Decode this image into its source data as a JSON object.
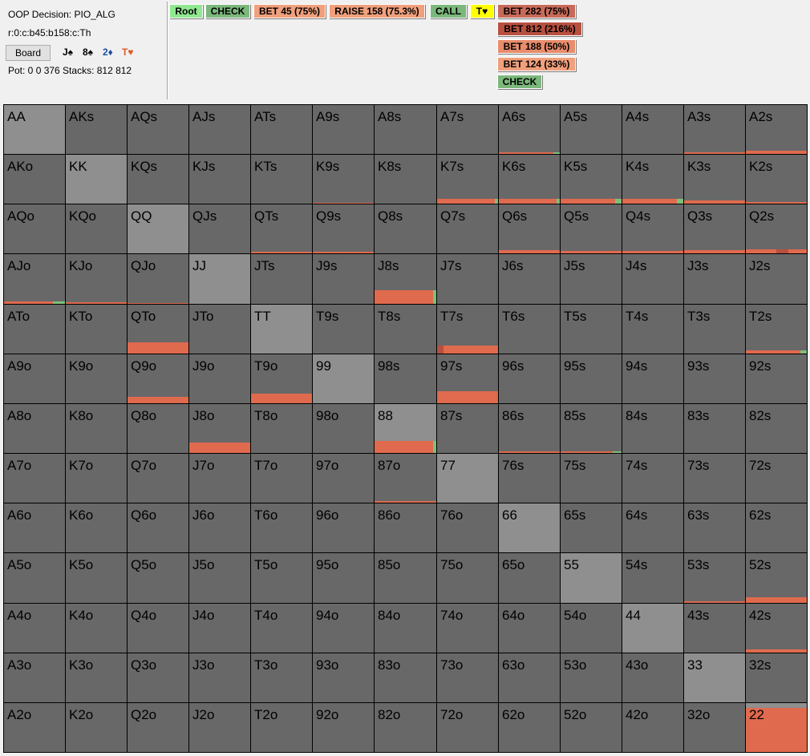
{
  "info": {
    "decision": "OOP Decision:  PIO_ALG",
    "line": "r:0:c:b45:b158:c:Th",
    "board_label": "Board",
    "pot": "Pot: 0 0 376 Stacks: 812 812"
  },
  "board_cards": [
    {
      "text": "J♠",
      "color": "#000000"
    },
    {
      "text": "8♠",
      "color": "#000000"
    },
    {
      "text": "2♦",
      "color": "#1f4fa0"
    },
    {
      "text": "T♥",
      "color": "#e05a2a"
    }
  ],
  "tree": [
    {
      "label": "Root",
      "bg": "#90e890"
    },
    {
      "label": "CHECK",
      "bg": "#7cb87c"
    },
    {
      "label": "BET 45 (75%)",
      "bg": "#f0a07c"
    },
    {
      "label": "RAISE 158 (75.3%)",
      "bg": "#f0a07c"
    },
    {
      "label": "CALL",
      "bg": "#7cb87c"
    },
    {
      "label": "T♥",
      "bg": "#ffff00"
    },
    {
      "label": "BET 282 (75%)",
      "bg": "#c86a5a"
    },
    {
      "label": "BET 812 (216%)",
      "bg": "#b85040"
    },
    {
      "label": "BET 188 (50%)",
      "bg": "#e88c6c"
    },
    {
      "label": "BET 124 (33%)",
      "bg": "#f0a07c"
    },
    {
      "label": "CHECK",
      "bg": "#7cb87c"
    }
  ],
  "colors": {
    "cell": "#686868",
    "pair": "#8f8f8f",
    "bet_big": "#b85040",
    "bet_mid": "#e06a4e",
    "bet_small": "#f0a07c",
    "check": "#7cc07c"
  },
  "grid": [
    [
      "AA",
      "AKs",
      "AQs",
      "AJs",
      "ATs",
      "A9s",
      "A8s",
      "A7s",
      "A6s",
      "A5s",
      "A4s",
      "A3s",
      "A2s"
    ],
    [
      "AKo",
      "KK",
      "KQs",
      "KJs",
      "KTs",
      "K9s",
      "K8s",
      "K7s",
      "K6s",
      "K5s",
      "K4s",
      "K3s",
      "K2s"
    ],
    [
      "AQo",
      "KQo",
      "QQ",
      "QJs",
      "QTs",
      "Q9s",
      "Q8s",
      "Q7s",
      "Q6s",
      "Q5s",
      "Q4s",
      "Q3s",
      "Q2s"
    ],
    [
      "AJo",
      "KJo",
      "QJo",
      "JJ",
      "JTs",
      "J9s",
      "J8s",
      "J7s",
      "J6s",
      "J5s",
      "J4s",
      "J3s",
      "J2s"
    ],
    [
      "ATo",
      "KTo",
      "QTo",
      "JTo",
      "TT",
      "T9s",
      "T8s",
      "T7s",
      "T6s",
      "T5s",
      "T4s",
      "T3s",
      "T2s"
    ],
    [
      "A9o",
      "K9o",
      "Q9o",
      "J9o",
      "T9o",
      "99",
      "98s",
      "97s",
      "96s",
      "95s",
      "94s",
      "93s",
      "92s"
    ],
    [
      "A8o",
      "K8o",
      "Q8o",
      "J8o",
      "T8o",
      "98o",
      "88",
      "87s",
      "86s",
      "85s",
      "84s",
      "83s",
      "82s"
    ],
    [
      "A7o",
      "K7o",
      "Q7o",
      "J7o",
      "T7o",
      "97o",
      "87o",
      "77",
      "76s",
      "75s",
      "74s",
      "73s",
      "72s"
    ],
    [
      "A6o",
      "K6o",
      "Q6o",
      "J6o",
      "T6o",
      "96o",
      "86o",
      "76o",
      "66",
      "65s",
      "64s",
      "63s",
      "62s"
    ],
    [
      "A5o",
      "K5o",
      "Q5o",
      "J5o",
      "T5o",
      "95o",
      "85o",
      "75o",
      "65o",
      "55",
      "54s",
      "53s",
      "52s"
    ],
    [
      "A4o",
      "K4o",
      "Q4o",
      "J4o",
      "T4o",
      "94o",
      "84o",
      "74o",
      "64o",
      "54o",
      "44",
      "43s",
      "42s"
    ],
    [
      "A3o",
      "K3o",
      "Q3o",
      "J3o",
      "T3o",
      "93o",
      "83o",
      "73o",
      "63o",
      "53o",
      "43o",
      "33",
      "32s"
    ],
    [
      "A2o",
      "K2o",
      "Q2o",
      "J2o",
      "T2o",
      "92o",
      "82o",
      "72o",
      "62o",
      "52o",
      "42o",
      "32o",
      "22"
    ]
  ],
  "strategy": {
    "A6s": {
      "level": 0.04,
      "segs": [
        [
          "bet_mid",
          0.9
        ],
        [
          "check",
          0.1
        ]
      ]
    },
    "A3s": {
      "level": 0.04,
      "segs": [
        [
          "bet_mid",
          1.0
        ]
      ]
    },
    "A2s": {
      "level": 0.07,
      "segs": [
        [
          "bet_mid",
          1.0
        ]
      ]
    },
    "K7s": {
      "level": 0.1,
      "segs": [
        [
          "bet_mid",
          0.95
        ],
        [
          "check",
          0.05
        ]
      ]
    },
    "K6s": {
      "level": 0.1,
      "segs": [
        [
          "bet_mid",
          0.95
        ],
        [
          "check",
          0.05
        ]
      ]
    },
    "K5s": {
      "level": 0.1,
      "segs": [
        [
          "bet_mid",
          0.9
        ],
        [
          "check",
          0.1
        ]
      ]
    },
    "K4s": {
      "level": 0.1,
      "segs": [
        [
          "bet_mid",
          0.9
        ],
        [
          "check",
          0.1
        ]
      ]
    },
    "K3s": {
      "level": 0.07,
      "segs": [
        [
          "bet_mid",
          1.0
        ]
      ]
    },
    "K2s": {
      "level": 0.04,
      "segs": [
        [
          "bet_mid",
          1.0
        ]
      ]
    },
    "K9s": {
      "level": 0.02,
      "segs": [
        [
          "bet_mid",
          1.0
        ]
      ]
    },
    "QTs": {
      "level": 0.03,
      "segs": [
        [
          "bet_mid",
          1.0
        ]
      ]
    },
    "Q9s": {
      "level": 0.03,
      "segs": [
        [
          "bet_mid",
          1.0
        ]
      ]
    },
    "Q6s": {
      "level": 0.06,
      "segs": [
        [
          "bet_mid",
          1.0
        ]
      ]
    },
    "Q5s": {
      "level": 0.05,
      "segs": [
        [
          "bet_mid",
          1.0
        ]
      ]
    },
    "Q4s": {
      "level": 0.05,
      "segs": [
        [
          "bet_mid",
          1.0
        ]
      ]
    },
    "Q3s": {
      "level": 0.06,
      "segs": [
        [
          "bet_mid",
          1.0
        ]
      ]
    },
    "Q2s": {
      "level": 0.08,
      "segs": [
        [
          "bet_mid",
          0.5
        ],
        [
          "bet_big",
          0.2
        ],
        [
          "bet_mid",
          0.3
        ]
      ]
    },
    "AJo": {
      "level": 0.05,
      "segs": [
        [
          "bet_mid",
          0.8
        ],
        [
          "check",
          0.2
        ]
      ]
    },
    "KJo": {
      "level": 0.03,
      "segs": [
        [
          "bet_mid",
          1.0
        ]
      ]
    },
    "QJo": {
      "level": 0.02,
      "segs": [
        [
          "bet_mid",
          1.0
        ]
      ]
    },
    "J8s": {
      "level": 0.27,
      "segs": [
        [
          "bet_mid",
          0.95
        ],
        [
          "check",
          0.05
        ]
      ]
    },
    "QTo": {
      "level": 0.23,
      "segs": [
        [
          "bet_mid",
          1.0
        ]
      ]
    },
    "T7s": {
      "level": 0.17,
      "segs": [
        [
          "bet_big",
          0.1
        ],
        [
          "bet_mid",
          0.9
        ]
      ]
    },
    "T2s": {
      "level": 0.06,
      "segs": [
        [
          "bet_mid",
          0.9
        ],
        [
          "check",
          0.1
        ]
      ]
    },
    "Q9o": {
      "level": 0.13,
      "segs": [
        [
          "bet_mid",
          1.0
        ]
      ]
    },
    "T9o": {
      "level": 0.2,
      "segs": [
        [
          "bet_mid",
          1.0
        ]
      ]
    },
    "97s": {
      "level": 0.25,
      "segs": [
        [
          "bet_mid",
          1.0
        ]
      ]
    },
    "J8o": {
      "level": 0.22,
      "segs": [
        [
          "bet_mid",
          1.0
        ]
      ]
    },
    "88": {
      "level": 0.25,
      "segs": [
        [
          "bet_mid",
          0.95
        ],
        [
          "check",
          0.05
        ]
      ]
    },
    "86s": {
      "level": 0.04,
      "segs": [
        [
          "bet_mid",
          1.0
        ]
      ]
    },
    "85s": {
      "level": 0.04,
      "segs": [
        [
          "bet_mid",
          0.85
        ],
        [
          "check",
          0.15
        ]
      ]
    },
    "87o": {
      "level": 0.03,
      "segs": [
        [
          "bet_mid",
          1.0
        ]
      ]
    },
    "53s": {
      "level": 0.03,
      "segs": [
        [
          "bet_mid",
          1.0
        ]
      ]
    },
    "52s": {
      "level": 0.12,
      "segs": [
        [
          "bet_mid",
          1.0
        ]
      ]
    },
    "42s": {
      "level": 0.06,
      "segs": [
        [
          "bet_mid",
          1.0
        ]
      ]
    },
    "22": {
      "level": 0.9,
      "segs": [
        [
          "bet_mid",
          1.0
        ]
      ]
    }
  }
}
